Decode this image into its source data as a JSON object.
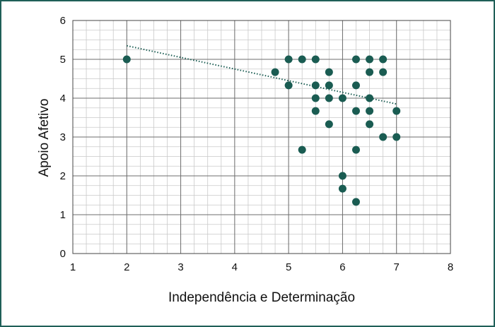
{
  "chart_data": {
    "type": "scatter",
    "title": "",
    "xlabel": "Independência e Determinação",
    "ylabel": "Apoio Afetivo",
    "xlim": [
      1,
      8
    ],
    "ylim": [
      0,
      6
    ],
    "x_ticks": [
      "1",
      "2",
      "3",
      "4",
      "5",
      "6",
      "7",
      "8"
    ],
    "y_ticks": [
      "0",
      "1",
      "2",
      "3",
      "4",
      "5",
      "6"
    ],
    "grid": true,
    "minor_grid_step": 0.25,
    "marker_color": "#1a5c52",
    "trendline": {
      "style": "dotted",
      "color": "#1a5c52",
      "from": [
        2,
        5.35
      ],
      "to": [
        7,
        3.85
      ]
    },
    "points": [
      {
        "x": 2,
        "y": 5
      },
      {
        "x": 4.75,
        "y": 4.67
      },
      {
        "x": 5,
        "y": 5
      },
      {
        "x": 5,
        "y": 4.33
      },
      {
        "x": 5.25,
        "y": 5
      },
      {
        "x": 5.25,
        "y": 2.67
      },
      {
        "x": 5.5,
        "y": 5
      },
      {
        "x": 5.5,
        "y": 4.33
      },
      {
        "x": 5.5,
        "y": 4
      },
      {
        "x": 5.5,
        "y": 3.67
      },
      {
        "x": 5.75,
        "y": 4.67
      },
      {
        "x": 5.75,
        "y": 4.33
      },
      {
        "x": 5.75,
        "y": 4
      },
      {
        "x": 5.75,
        "y": 3.33
      },
      {
        "x": 6,
        "y": 4
      },
      {
        "x": 6,
        "y": 2
      },
      {
        "x": 6,
        "y": 1.67
      },
      {
        "x": 6.25,
        "y": 5
      },
      {
        "x": 6.25,
        "y": 4.33
      },
      {
        "x": 6.25,
        "y": 3.67
      },
      {
        "x": 6.25,
        "y": 2.67
      },
      {
        "x": 6.25,
        "y": 1.33
      },
      {
        "x": 6.5,
        "y": 5
      },
      {
        "x": 6.5,
        "y": 4.67
      },
      {
        "x": 6.5,
        "y": 4
      },
      {
        "x": 6.5,
        "y": 3.67
      },
      {
        "x": 6.5,
        "y": 3.33
      },
      {
        "x": 6.75,
        "y": 5
      },
      {
        "x": 6.75,
        "y": 4.67
      },
      {
        "x": 6.75,
        "y": 3
      },
      {
        "x": 7,
        "y": 3.67
      },
      {
        "x": 7,
        "y": 3
      }
    ]
  }
}
